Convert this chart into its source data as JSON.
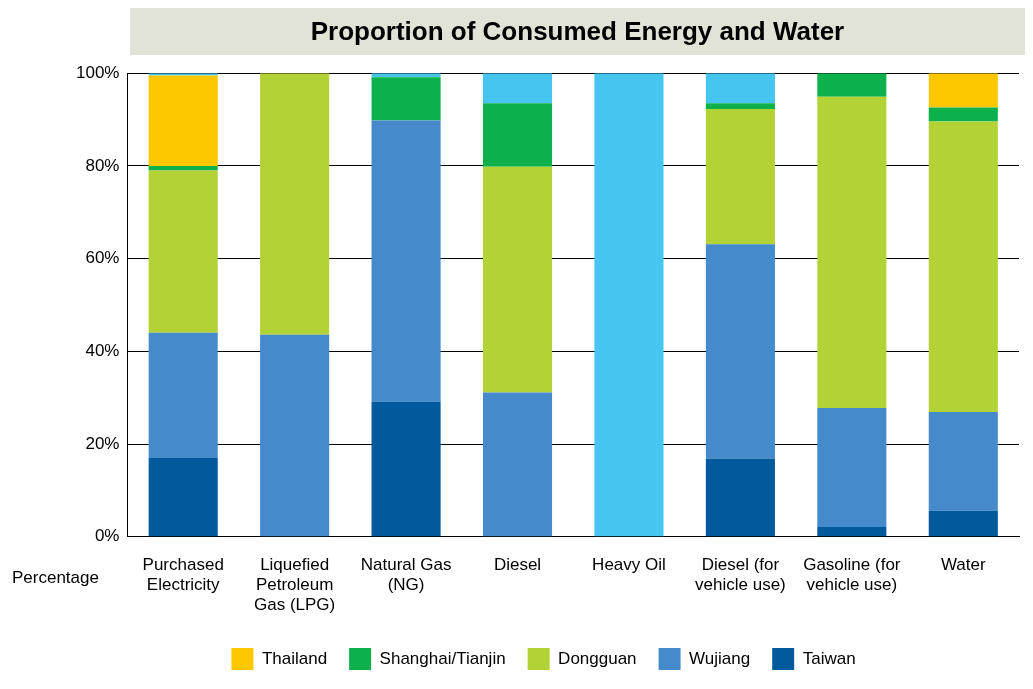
{
  "chart_data": {
    "type": "bar",
    "title": "Proportion of Consumed Energy and Water",
    "xlabel": "Percentage",
    "stacked": true,
    "grid": "y",
    "legend": "bottom",
    "categories": [
      "Purchased Electricity",
      "Liquefied Petroleum Gas (LPG)",
      "Natural Gas (NG)",
      "Diesel",
      "Heavy Oil",
      "Diesel (for vehicle use)",
      "Gasoline (for vehicle use)",
      "Water"
    ],
    "ylim": [
      0,
      100
    ],
    "yticks": [
      {
        "value": 0,
        "label": "0%"
      },
      {
        "value": 20,
        "label": "20%"
      },
      {
        "value": 40,
        "label": "40%"
      },
      {
        "value": 60,
        "label": "60%"
      },
      {
        "value": 80,
        "label": "80%"
      },
      {
        "value": 100,
        "label": "100%"
      }
    ],
    "series": [
      {
        "name": "Taiwan",
        "color": "#005a9c",
        "values": [
          17,
          0,
          29.2,
          0,
          0,
          16.9,
          2.1,
          5.6
        ]
      },
      {
        "name": "Wujiang",
        "color": "#458acb",
        "values": [
          27,
          43.6,
          60.6,
          31.1,
          0,
          46.2,
          25.7,
          21.3
        ]
      },
      {
        "name": "Dongguan",
        "color": "#b2d235",
        "values": [
          35,
          56.4,
          0,
          48.7,
          0,
          29.2,
          67.1,
          62.7
        ]
      },
      {
        "name": "Shanghai/Tianjin",
        "color": "#0db14b",
        "values": [
          1,
          0,
          9.3,
          13.7,
          0,
          1.2,
          5.1,
          3
        ]
      },
      {
        "name": "Thailand",
        "color": "#fdc800",
        "values": [
          19.5,
          0,
          0,
          0,
          0,
          0,
          0,
          7.4
        ]
      },
      {
        "color": "#45c5f0",
        "values": [
          0.5,
          0,
          0.9,
          6.5,
          100,
          6.5,
          0,
          0
        ]
      }
    ]
  }
}
